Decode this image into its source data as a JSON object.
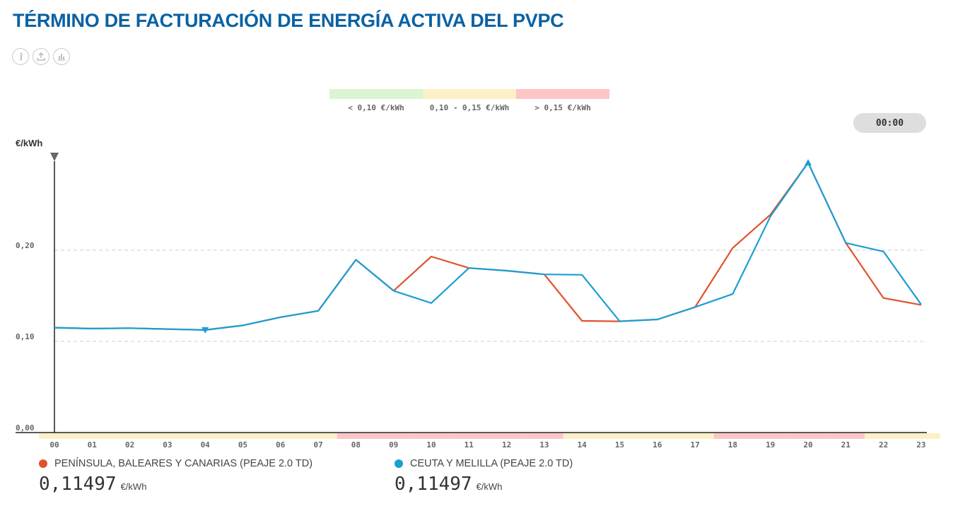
{
  "page": {
    "title": "TÉRMINO DE FACTURACIÓN DE ENERGÍA ACTIVA DEL PVPC",
    "icons": [
      "info-icon",
      "download-icon",
      "bar-chart-icon"
    ],
    "current_time": "00:00"
  },
  "price_legend": [
    {
      "label": "< 0,10 €/kWh",
      "color": "#d9f5d3"
    },
    {
      "label": "0,10 - 0,15 €/kWh",
      "color": "#fdf0c6"
    },
    {
      "label": "> 0,15 €/kWh",
      "color": "#fdc6c6"
    }
  ],
  "chart_data": {
    "type": "line",
    "ylabel": "€/kWh",
    "ylim": [
      0,
      0.3
    ],
    "yticks": [
      "0,00",
      "0,10",
      "0,20"
    ],
    "yticks_values": [
      0,
      0.1,
      0.2
    ],
    "categories": [
      "00",
      "01",
      "02",
      "03",
      "04",
      "05",
      "06",
      "07",
      "08",
      "09",
      "10",
      "11",
      "12",
      "13",
      "14",
      "15",
      "16",
      "17",
      "18",
      "19",
      "20",
      "21",
      "22",
      "23"
    ],
    "grid": "horizontal dashed",
    "series": [
      {
        "name": "PENÍNSULA, BALEARES Y CANARIAS (PEAJE 2.0 TD)",
        "color": "#e0522f",
        "values": [
          0.115,
          0.114,
          0.1145,
          0.1135,
          0.1125,
          0.1175,
          0.1265,
          0.1335,
          0.1895,
          0.1555,
          0.193,
          0.1805,
          0.1775,
          0.1735,
          0.1225,
          0.122,
          0.124,
          0.1375,
          0.2025,
          0.239,
          0.296,
          0.208,
          0.1475,
          0.14
        ]
      },
      {
        "name": "CEUTA Y MELILLA (PEAJE 2.0 TD)",
        "color": "#1a9fd4",
        "values": [
          0.115,
          0.114,
          0.1145,
          0.1135,
          0.1125,
          0.1175,
          0.1265,
          0.1335,
          0.1895,
          0.1555,
          0.142,
          0.1805,
          0.1775,
          0.1735,
          0.173,
          0.122,
          0.124,
          0.1375,
          0.152,
          0.237,
          0.296,
          0.208,
          0.1985,
          0.1405
        ]
      }
    ],
    "band_colors": [
      "#fdf0c6",
      "#fdf0c6",
      "#fdf0c6",
      "#fdf0c6",
      "#fdf0c6",
      "#fdf0c6",
      "#fdf0c6",
      "#fdf0c6",
      "#fdc6c6",
      "#fdc6c6",
      "#fdc6c6",
      "#fdc6c6",
      "#fdc6c6",
      "#fdc6c6",
      "#fdf0c6",
      "#fdf0c6",
      "#fdf0c6",
      "#fdf0c6",
      "#fdc6c6",
      "#fdc6c6",
      "#fdc6c6",
      "#fdc6c6",
      "#fdf0c6",
      "#fdf0c6"
    ],
    "max_marker_index": 20,
    "min_marker_index": 4
  },
  "series_legend": [
    {
      "name": "PENÍNSULA, BALEARES Y CANARIAS (PEAJE 2.0 TD)",
      "color": "#e0522f",
      "value": "0,11497",
      "unit": "€/kWh"
    },
    {
      "name": "CEUTA Y MELILLA (PEAJE 2.0 TD)",
      "color": "#1a9fd4",
      "value": "0,11497",
      "unit": "€/kWh"
    }
  ]
}
